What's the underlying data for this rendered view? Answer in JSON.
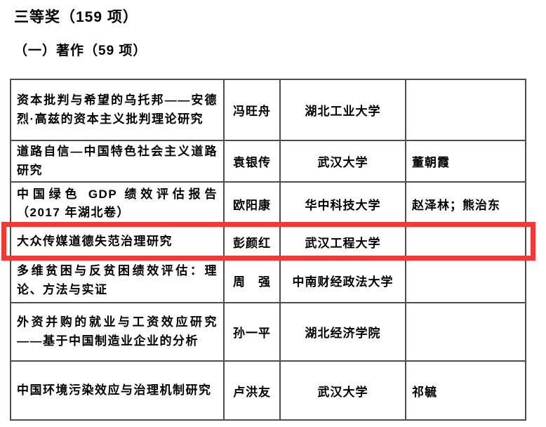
{
  "header": {
    "title": "三等奖（159 项）",
    "subtitle": "（一）著作（59 项）"
  },
  "annotation": {
    "type": "highlight-rectangle",
    "color": "#ef3b33",
    "highlighted_row_index": 3
  },
  "table": {
    "rows": [
      {
        "title": "资本批判与希望的乌托邦——安德烈·高兹的资本主义批判理论研究",
        "author": "冯旺舟",
        "institution": "湖北工业大学",
        "co_authors": "",
        "highlighted": false
      },
      {
        "title": "道路自信—中国特色社会主义道路研究",
        "author": "袁银传",
        "institution": "武汉大学",
        "co_authors": "董朝霞",
        "highlighted": false
      },
      {
        "title": "中国绿色 GDP 绩效评估报告（2017 年湖北卷）",
        "author": "欧阳康",
        "institution": "华中科技大学",
        "co_authors": "赵泽林；熊治东",
        "highlighted": false
      },
      {
        "title": "大众传媒道德失范治理研究",
        "author": "彭颜红",
        "institution": "武汉工程大学",
        "co_authors": "",
        "highlighted": true
      },
      {
        "title": "多维贫困与反贫困绩效评估：理论、方法与实证",
        "author": "周　强",
        "institution": "中南财经政法大学",
        "co_authors": "",
        "highlighted": false
      },
      {
        "title": "外资并购的就业与工资效应研究——基于中国制造业企业的分析",
        "author": "孙一平",
        "institution": "湖北经济学院",
        "co_authors": "",
        "highlighted": false
      },
      {
        "title": "中国环境污染效应与治理机制研究",
        "author": "卢洪友",
        "institution": "武汉大学",
        "co_authors": "祁毓",
        "highlighted": false
      }
    ]
  }
}
